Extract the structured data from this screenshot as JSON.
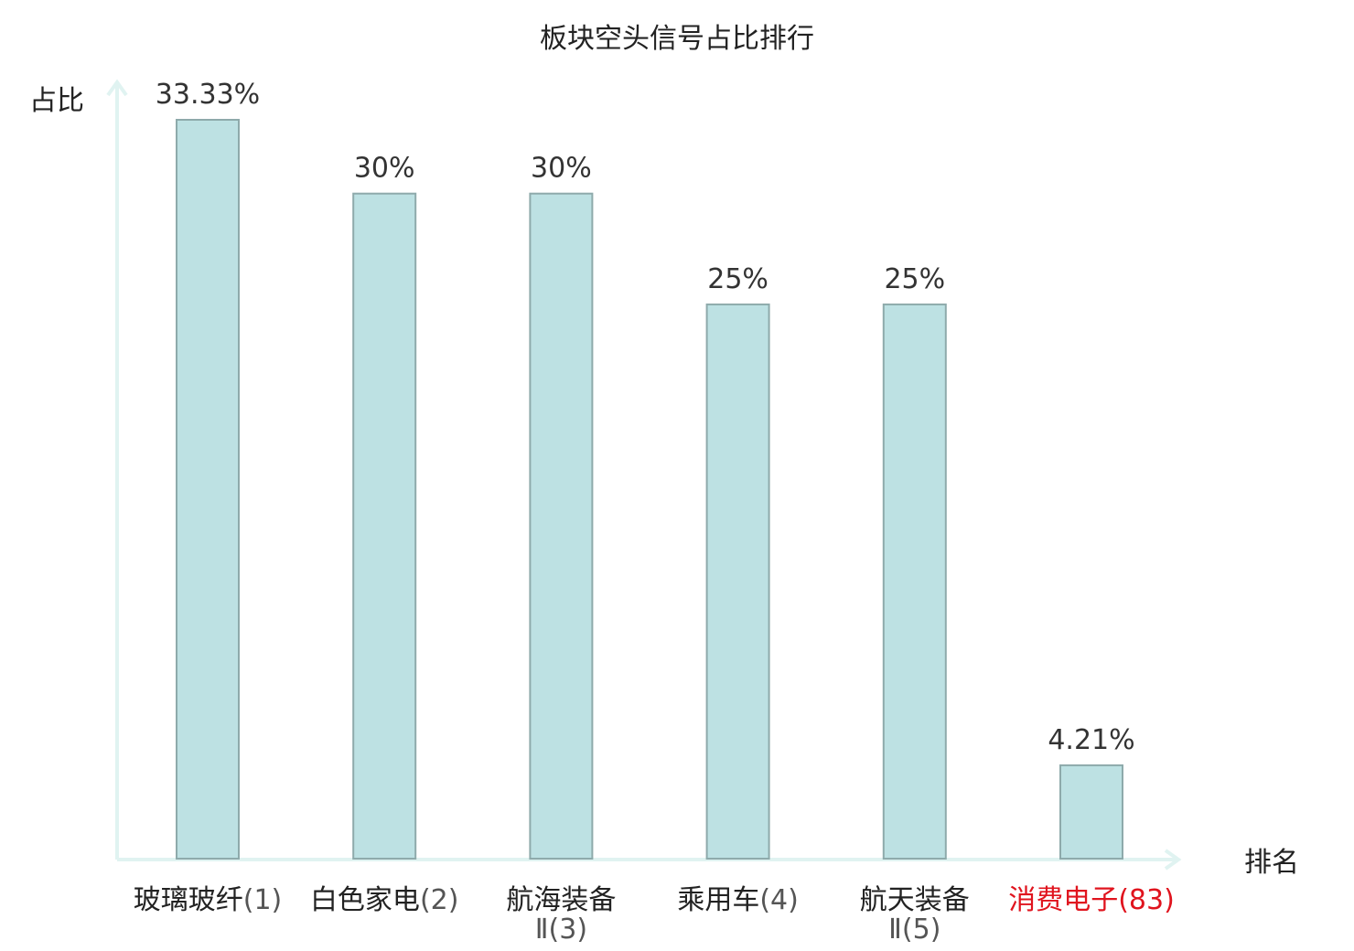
{
  "chart_data": {
    "type": "bar",
    "title": "板块空头信号占比排行",
    "ylabel": "占比",
    "xlabel": "排名",
    "ylim": [
      0,
      40
    ],
    "grid": false,
    "categories": [
      {
        "name": "玻璃玻纤",
        "rank": "(1)"
      },
      {
        "name": "白色家电",
        "rank": "(2)"
      },
      {
        "name": "航海装备",
        "rank": "Ⅱ(3)"
      },
      {
        "name": "乘用车",
        "rank": "(4)"
      },
      {
        "name": "航天装备",
        "rank": "Ⅱ(5)"
      },
      {
        "name": "消费电子",
        "rank": "(83)"
      }
    ],
    "values": [
      33.33,
      30,
      30,
      25,
      25,
      4.21
    ],
    "value_labels": [
      "33.33%",
      "30%",
      "30%",
      "25%",
      "25%",
      "4.21%"
    ],
    "highlight_index": 5
  },
  "colors": {
    "bar_fill": "#bde1e3",
    "bar_stroke": "#8eaaab",
    "axis": "#e0f3f1",
    "highlight": "#e0141e"
  }
}
